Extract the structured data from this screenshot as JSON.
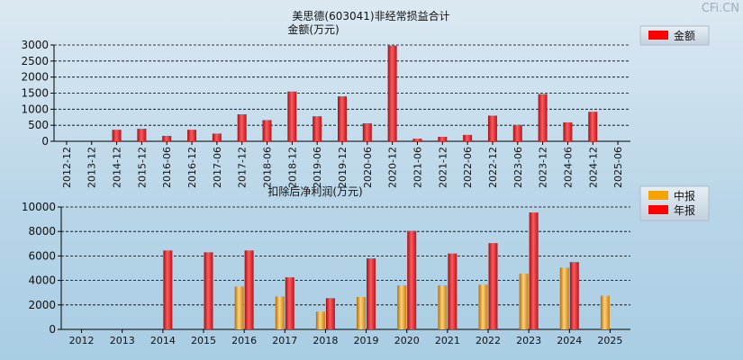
{
  "watermark": "CFi.CN",
  "colors": {
    "annual_bar": "#e8242b",
    "interim_bar": "#f2a51e",
    "bg_top": "#dce9f2",
    "bg_bottom": "#a9cde3",
    "legend_bg": "#c8d6e2"
  },
  "chart_data": [
    {
      "type": "bar",
      "title": "美思德(603041)非经常损益合计",
      "ylabel": "金额(万元)",
      "ylim": [
        0,
        3000
      ],
      "yticks": [
        0,
        500,
        1000,
        1500,
        2000,
        2500,
        3000
      ],
      "grid": true,
      "legend_position": "top-right",
      "categories": [
        "2012-12",
        "2013-12",
        "2014-12",
        "2015-12",
        "2016-06",
        "2016-12",
        "2017-06",
        "2017-12",
        "2018-06",
        "2018-12",
        "2019-06",
        "2019-12",
        "2020-06",
        "2020-12",
        "2021-06",
        "2021-12",
        "2022-06",
        "2022-12",
        "2023-06",
        "2023-12",
        "2024-06",
        "2024-12",
        "2025-06"
      ],
      "series": [
        {
          "name": "金额",
          "values": [
            0,
            0,
            360,
            390,
            170,
            360,
            240,
            840,
            660,
            1550,
            780,
            1400,
            560,
            2980,
            80,
            140,
            200,
            800,
            510,
            1470,
            590,
            920,
            0
          ]
        }
      ]
    },
    {
      "type": "bar",
      "title": "扣除后净利润(万元)",
      "ylim": [
        0,
        10000
      ],
      "yticks": [
        0,
        2000,
        4000,
        6000,
        8000,
        10000
      ],
      "grid": true,
      "legend_position": "top-right",
      "categories": [
        "2012",
        "2013",
        "2014",
        "2015",
        "2016",
        "2017",
        "2018",
        "2019",
        "2020",
        "2021",
        "2022",
        "2023",
        "2024",
        "2025"
      ],
      "series": [
        {
          "name": "中报",
          "values": [
            null,
            null,
            null,
            null,
            3500,
            2700,
            1450,
            2650,
            3600,
            3600,
            3650,
            4550,
            5050,
            2750
          ]
        },
        {
          "name": "年报",
          "values": [
            null,
            null,
            6450,
            6300,
            6450,
            4250,
            2550,
            5800,
            8050,
            6200,
            7050,
            9550,
            5500,
            null
          ]
        }
      ]
    }
  ]
}
